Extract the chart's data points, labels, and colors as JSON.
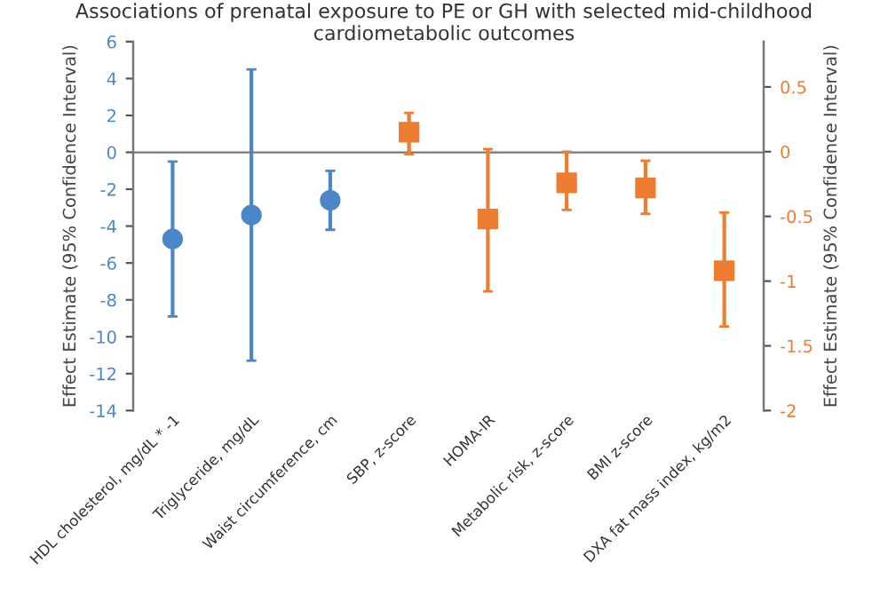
{
  "chart_data": {
    "type": "scatter",
    "title": "Associations of prenatal exposure to PE or GH with selected mid-childhood cardiometabolic outcomes",
    "ylabel": "Effect Estimate (95% Confidence Interval)",
    "y2label": "Effect Estimate (95% Confidence Interval)",
    "categories": [
      "HDL cholesterol, mg/dL * -1",
      "Triglyceride, mg/dL",
      "Waist circumference, cm",
      "SBP, z-score",
      "HOMA-IR",
      "Metabolic risk, z-score",
      "BMI z-score",
      "DXA fat mass index, kg/m2"
    ],
    "series": [
      {
        "color": "#4a86c8",
        "marker": "circle",
        "values": [
          -4.7,
          -3.4,
          -2.6,
          null,
          null,
          null,
          null,
          null
        ],
        "errors": [
          [
            -8.9,
            -0.5
          ],
          [
            -11.3,
            4.5
          ],
          [
            -4.2,
            -1.0
          ],
          null,
          null,
          null,
          null,
          null
        ]
      },
      {
        "color": "#ed7d31",
        "marker": "square",
        "axis": "y2",
        "values": [
          null,
          null,
          null,
          0.15,
          -0.52,
          -0.24,
          -0.28,
          -0.92
        ],
        "errors": [
          null,
          null,
          null,
          [
            -0.02,
            0.3
          ],
          [
            -1.08,
            0.02
          ],
          [
            -0.45,
            0.0
          ],
          [
            -0.48,
            -0.07
          ],
          [
            -1.35,
            -0.47
          ]
        ]
      }
    ],
    "ylim": [
      -14,
      6
    ],
    "yticks": [
      -14,
      -12,
      -10,
      -8,
      -6,
      -4,
      -2,
      0,
      2,
      4,
      6
    ],
    "y2lim": [
      -2,
      0.85
    ],
    "y2ticks": [
      -2,
      -1.5,
      -1,
      -0.5,
      0,
      0.5
    ],
    "grid": false,
    "legend": false
  }
}
